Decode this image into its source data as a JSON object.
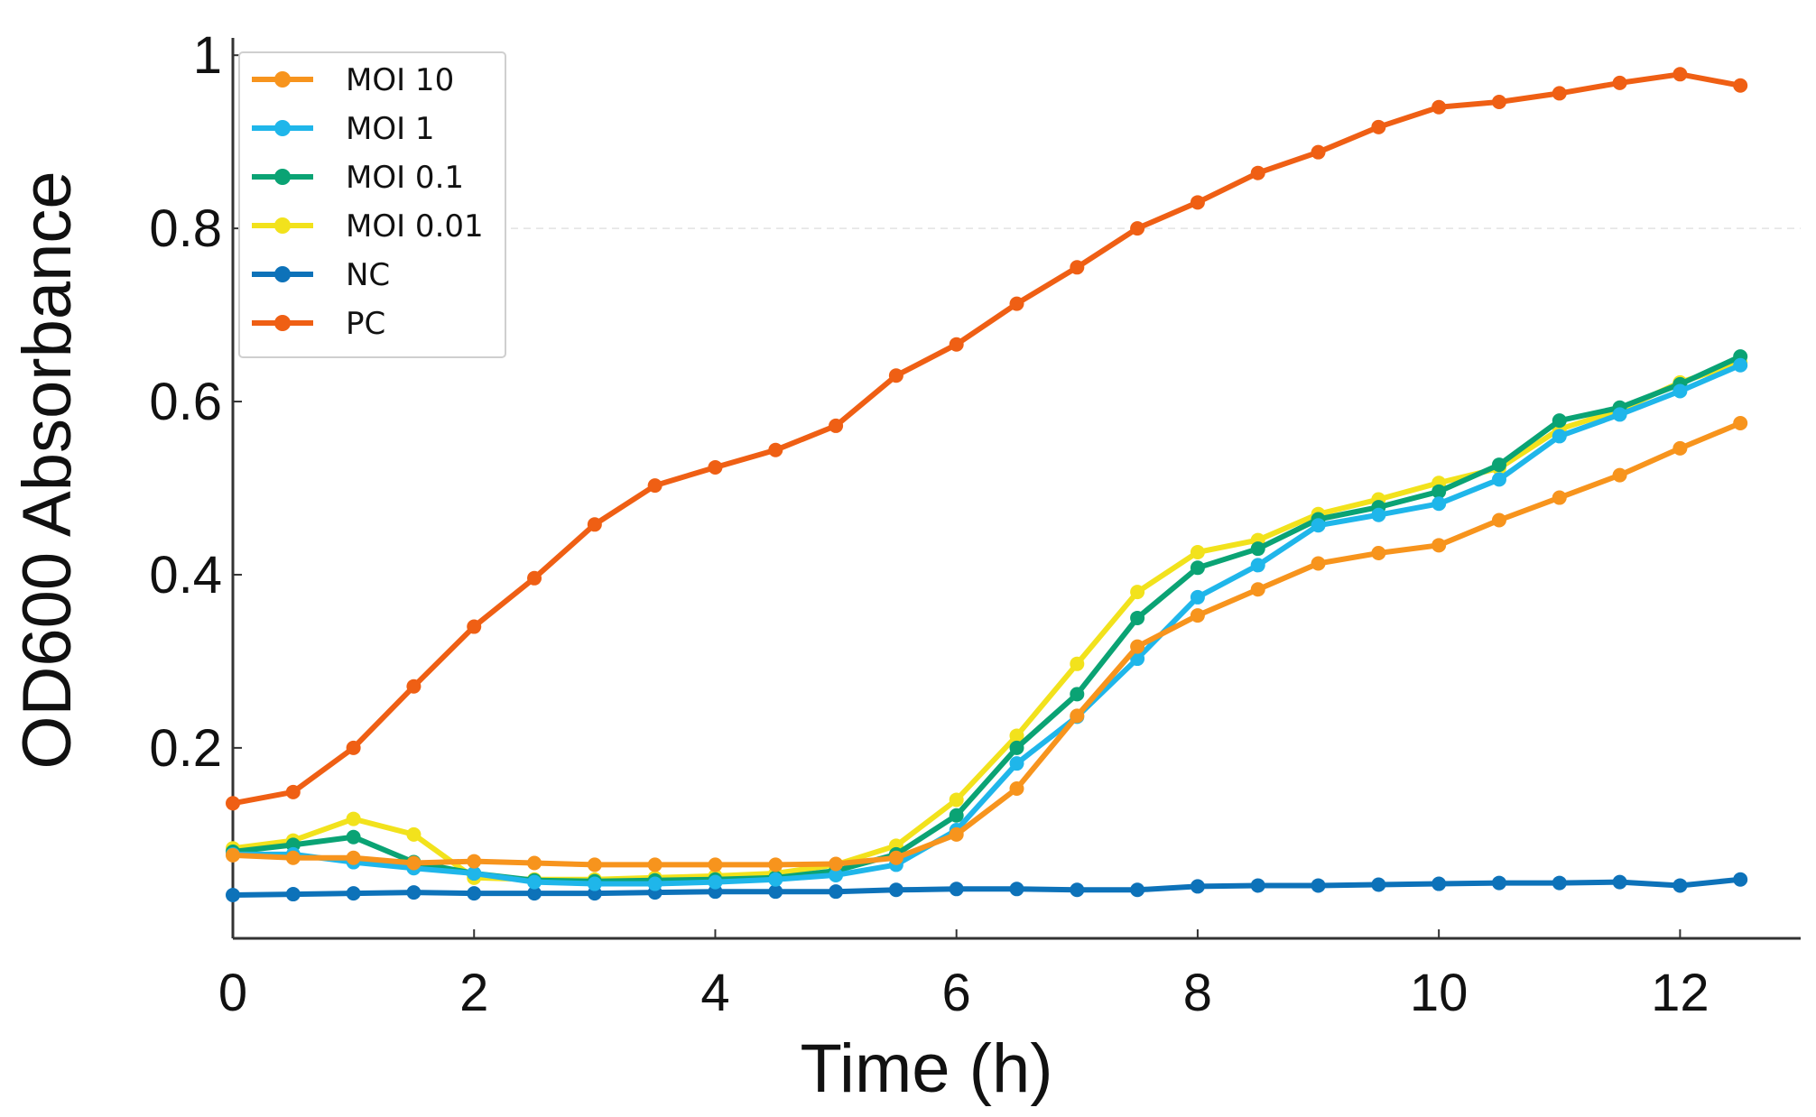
{
  "chart_data": {
    "type": "line",
    "xlabel": "Time (h)",
    "ylabel": "OD600 Absorbance",
    "xlim": [
      0,
      13
    ],
    "ylim": [
      -0.02,
      1.02
    ],
    "xticks": [
      0,
      2,
      4,
      6,
      8,
      10,
      12
    ],
    "yticks": [
      0.2,
      0.4,
      0.6,
      0.8,
      1
    ],
    "ytick_labels": [
      "0.2",
      "0.4",
      "0.6",
      "0.8",
      "1"
    ],
    "xtick_labels": [
      "0",
      "2",
      "4",
      "6",
      "8",
      "10",
      "12"
    ],
    "grid": "dashed line at 0.8 only",
    "legend_position": "top-left",
    "x": [
      0,
      0.5,
      1,
      1.5,
      2,
      2.5,
      3,
      3.5,
      4,
      4.5,
      5,
      5.5,
      6,
      6.5,
      7,
      7.5,
      8,
      8.5,
      9,
      9.5,
      10,
      10.5,
      11,
      11.5,
      12,
      12.5
    ],
    "series": [
      {
        "name": "MOI 10",
        "color": "#f7941d",
        "values": [
          0.076,
          0.073,
          0.073,
          0.067,
          0.069,
          0.067,
          0.065,
          0.065,
          0.065,
          0.065,
          0.066,
          0.073,
          0.1,
          0.153,
          0.237,
          0.317,
          0.353,
          0.383,
          0.413,
          0.425,
          0.434,
          0.463,
          0.489,
          0.515,
          0.546,
          0.575
        ]
      },
      {
        "name": "MOI 1",
        "color": "#1fb6ea",
        "values": [
          0.077,
          0.077,
          0.068,
          0.061,
          0.055,
          0.045,
          0.043,
          0.043,
          0.045,
          0.048,
          0.053,
          0.065,
          0.105,
          0.182,
          0.236,
          0.303,
          0.374,
          0.411,
          0.457,
          0.469,
          0.482,
          0.51,
          0.56,
          0.585,
          0.612,
          0.642
        ]
      },
      {
        "name": "MOI 0.1",
        "color": "#0aa374",
        "values": [
          0.08,
          0.088,
          0.097,
          0.068,
          0.055,
          0.047,
          0.046,
          0.047,
          0.048,
          0.05,
          0.058,
          0.077,
          0.122,
          0.2,
          0.262,
          0.35,
          0.408,
          0.43,
          0.464,
          0.478,
          0.496,
          0.527,
          0.578,
          0.593,
          0.62,
          0.652
        ]
      },
      {
        "name": "MOI 0.01",
        "color": "#f2e21c",
        "values": [
          0.084,
          0.093,
          0.118,
          0.1,
          0.05,
          0.048,
          0.048,
          0.05,
          0.052,
          0.055,
          0.065,
          0.087,
          0.14,
          0.214,
          0.297,
          0.38,
          0.426,
          0.44,
          0.47,
          0.487,
          0.506,
          0.523,
          0.568,
          0.59,
          0.622,
          0.645
        ]
      },
      {
        "name": "NC",
        "color": "#0d72b9",
        "values": [
          0.03,
          0.031,
          0.032,
          0.033,
          0.032,
          0.032,
          0.032,
          0.033,
          0.034,
          0.034,
          0.034,
          0.036,
          0.037,
          0.037,
          0.036,
          0.036,
          0.04,
          0.041,
          0.041,
          0.042,
          0.043,
          0.044,
          0.044,
          0.045,
          0.041,
          0.048
        ]
      },
      {
        "name": "PC",
        "color": "#ef5f14",
        "values": [
          0.136,
          0.149,
          0.2,
          0.271,
          0.34,
          0.396,
          0.458,
          0.503,
          0.524,
          0.544,
          0.572,
          0.63,
          0.666,
          0.713,
          0.755,
          0.8,
          0.83,
          0.864,
          0.888,
          0.917,
          0.94,
          0.946,
          0.956,
          0.968,
          0.978,
          0.965
        ]
      }
    ]
  }
}
